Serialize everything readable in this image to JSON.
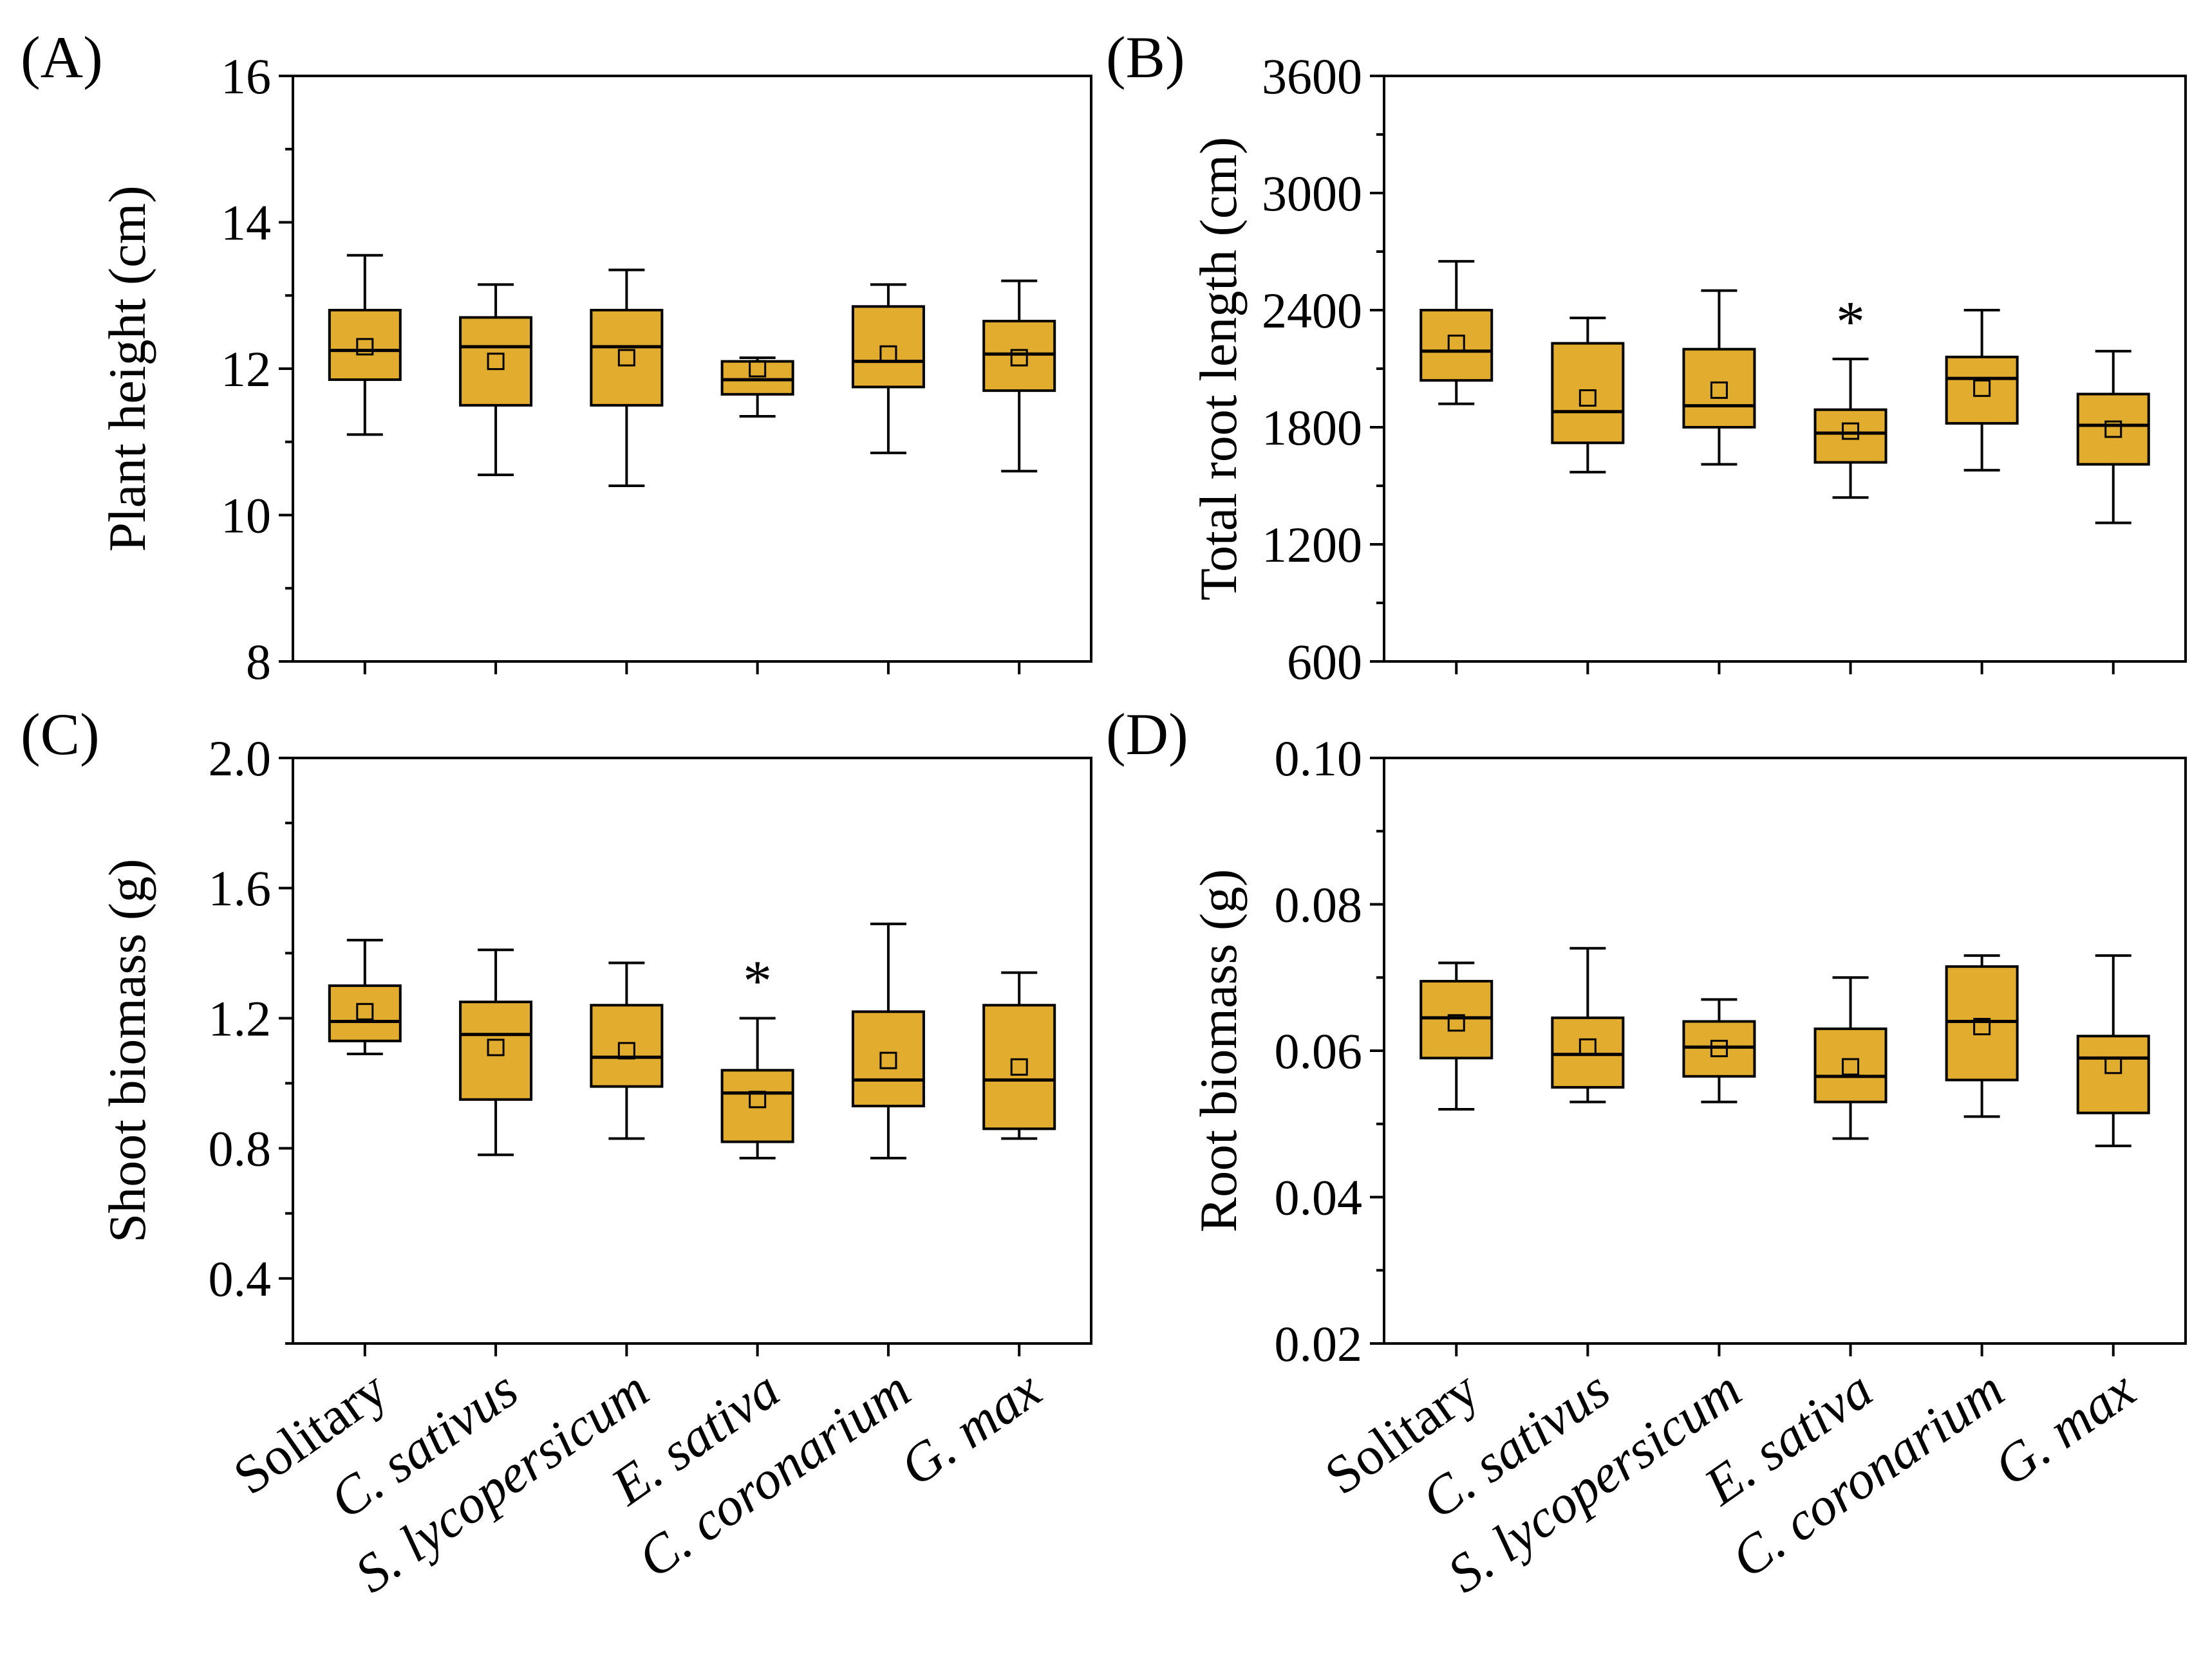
{
  "chart_data": [
    {
      "type": "box",
      "panel_label": "(A)",
      "ylabel": "Plant height (cm)",
      "ylim": [
        8,
        16
      ],
      "yticks": [
        8,
        10,
        12,
        14,
        16
      ],
      "ytick_labels": [
        "8",
        "10",
        "12",
        "14",
        "16"
      ],
      "categories": [
        "Solitary",
        "C. sativus",
        "S. lycopersicum",
        "E. sativa",
        "C. coronarium",
        "G. max"
      ],
      "italic_categories": [
        false,
        true,
        true,
        true,
        true,
        true
      ],
      "box_color": "#E2AC2E",
      "boxes": [
        {
          "min": 11.1,
          "q1": 11.85,
          "median": 12.25,
          "q3": 12.8,
          "max": 13.55,
          "mean": 12.3
        },
        {
          "min": 10.55,
          "q1": 11.5,
          "median": 12.3,
          "q3": 12.7,
          "max": 13.15,
          "mean": 12.1
        },
        {
          "min": 10.4,
          "q1": 11.5,
          "median": 12.3,
          "q3": 12.8,
          "max": 13.35,
          "mean": 12.15
        },
        {
          "min": 11.35,
          "q1": 11.65,
          "median": 11.85,
          "q3": 12.1,
          "max": 12.15,
          "mean": 12.0
        },
        {
          "min": 10.85,
          "q1": 11.75,
          "median": 12.1,
          "q3": 12.85,
          "max": 13.15,
          "mean": 12.2
        },
        {
          "min": 10.6,
          "q1": 11.7,
          "median": 12.2,
          "q3": 12.65,
          "max": 13.2,
          "mean": 12.15
        }
      ],
      "significance": [
        "",
        "",
        "",
        "",
        "",
        ""
      ]
    },
    {
      "type": "box",
      "panel_label": "(B)",
      "ylabel": "Total root length (cm)",
      "ylim": [
        600,
        3600
      ],
      "yticks": [
        600,
        1200,
        1800,
        2400,
        3000,
        3600
      ],
      "ytick_labels": [
        "600",
        "1200",
        "1800",
        "2400",
        "3000",
        "3600"
      ],
      "categories": [
        "Solitary",
        "C. sativus",
        "S. lycopersicum",
        "E. sativa",
        "C. coronarium",
        "G. max"
      ],
      "italic_categories": [
        false,
        true,
        true,
        true,
        true,
        true
      ],
      "box_color": "#E2AC2E",
      "boxes": [
        {
          "min": 1920,
          "q1": 2040,
          "median": 2190,
          "q3": 2400,
          "max": 2650,
          "mean": 2230
        },
        {
          "min": 1570,
          "q1": 1720,
          "median": 1880,
          "q3": 2230,
          "max": 2360,
          "mean": 1950
        },
        {
          "min": 1610,
          "q1": 1800,
          "median": 1910,
          "q3": 2200,
          "max": 2500,
          "mean": 1990
        },
        {
          "min": 1440,
          "q1": 1620,
          "median": 1770,
          "q3": 1890,
          "max": 2150,
          "mean": 1780
        },
        {
          "min": 1580,
          "q1": 1820,
          "median": 2050,
          "q3": 2160,
          "max": 2400,
          "mean": 2000
        },
        {
          "min": 1310,
          "q1": 1610,
          "median": 1810,
          "q3": 1970,
          "max": 2190,
          "mean": 1790
        }
      ],
      "significance": [
        "",
        "",
        "",
        "*",
        "",
        ""
      ]
    },
    {
      "type": "box",
      "panel_label": "(C)",
      "ylabel": "Shoot biomass (g)",
      "ylim": [
        0.2,
        2.0
      ],
      "yticks": [
        0.4,
        0.8,
        1.2,
        1.6,
        2.0
      ],
      "ytick_labels": [
        "0.4",
        "0.8",
        "1.2",
        "1.6",
        "2.0"
      ],
      "categories": [
        "Solitary",
        "C. sativus",
        "S. lycopersicum",
        "E. sativa",
        "C. coronarium",
        "G. max"
      ],
      "italic_categories": [
        false,
        true,
        true,
        true,
        true,
        true
      ],
      "box_color": "#E2AC2E",
      "boxes": [
        {
          "min": 1.09,
          "q1": 1.13,
          "median": 1.19,
          "q3": 1.3,
          "max": 1.44,
          "mean": 1.22
        },
        {
          "min": 0.78,
          "q1": 0.95,
          "median": 1.15,
          "q3": 1.25,
          "max": 1.41,
          "mean": 1.11
        },
        {
          "min": 0.83,
          "q1": 0.99,
          "median": 1.08,
          "q3": 1.24,
          "max": 1.37,
          "mean": 1.1
        },
        {
          "min": 0.77,
          "q1": 0.82,
          "median": 0.97,
          "q3": 1.04,
          "max": 1.2,
          "mean": 0.95
        },
        {
          "min": 0.77,
          "q1": 0.93,
          "median": 1.01,
          "q3": 1.22,
          "max": 1.49,
          "mean": 1.07
        },
        {
          "min": 0.83,
          "q1": 0.86,
          "median": 1.01,
          "q3": 1.24,
          "max": 1.34,
          "mean": 1.05
        }
      ],
      "significance": [
        "",
        "",
        "",
        "*",
        "",
        ""
      ]
    },
    {
      "type": "box",
      "panel_label": "(D)",
      "ylabel": "Root biomass (g)",
      "ylim": [
        0.02,
        0.1
      ],
      "yticks": [
        0.02,
        0.04,
        0.06,
        0.08,
        0.1
      ],
      "ytick_labels": [
        "0.02",
        "0.04",
        "0.06",
        "0.08",
        "0.10"
      ],
      "categories": [
        "Solitary",
        "C. sativus",
        "S. lycopersicum",
        "E. sativa",
        "C. coronarium",
        "G. max"
      ],
      "italic_categories": [
        false,
        true,
        true,
        true,
        true,
        true
      ],
      "box_color": "#E2AC2E",
      "boxes": [
        {
          "min": 0.052,
          "q1": 0.059,
          "median": 0.0645,
          "q3": 0.0695,
          "max": 0.072,
          "mean": 0.0638
        },
        {
          "min": 0.053,
          "q1": 0.055,
          "median": 0.0595,
          "q3": 0.0645,
          "max": 0.074,
          "mean": 0.0605
        },
        {
          "min": 0.053,
          "q1": 0.0565,
          "median": 0.0605,
          "q3": 0.064,
          "max": 0.067,
          "mean": 0.0603
        },
        {
          "min": 0.048,
          "q1": 0.053,
          "median": 0.0565,
          "q3": 0.063,
          "max": 0.07,
          "mean": 0.0578
        },
        {
          "min": 0.051,
          "q1": 0.056,
          "median": 0.064,
          "q3": 0.0715,
          "max": 0.073,
          "mean": 0.0633
        },
        {
          "min": 0.047,
          "q1": 0.0515,
          "median": 0.059,
          "q3": 0.062,
          "max": 0.073,
          "mean": 0.058
        }
      ],
      "significance": [
        "",
        "",
        "",
        "",
        "",
        ""
      ]
    }
  ]
}
